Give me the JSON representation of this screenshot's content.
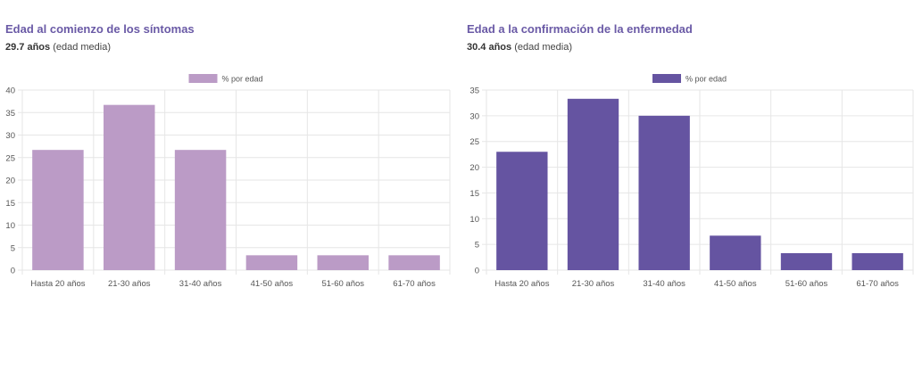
{
  "panels": [
    {
      "title": "Edad al comienzo de los síntomas",
      "stat_value": "29.7 años",
      "stat_label": "(edad media)"
    },
    {
      "title": "Edad a la confirmación de la enfermedad",
      "stat_value": "30.4 años",
      "stat_label": "(edad media)"
    }
  ],
  "chart_data": [
    {
      "type": "bar",
      "categories": [
        "Hasta 20 años",
        "21-30 años",
        "31-40 años",
        "41-50 años",
        "51-60 años",
        "61-70 años"
      ],
      "series": [
        {
          "name": "% por edad",
          "values": [
            26.7,
            36.7,
            26.7,
            3.3,
            3.3,
            3.3
          ]
        }
      ],
      "ylim": [
        0,
        40
      ],
      "yticks": [
        0,
        5,
        10,
        15,
        20,
        25,
        30,
        35,
        40
      ],
      "color": "#bb9bc6",
      "legend": "top-center",
      "grid": true
    },
    {
      "type": "bar",
      "categories": [
        "Hasta 20 años",
        "21-30 años",
        "31-40 años",
        "41-50 años",
        "51-60 años",
        "61-70 años"
      ],
      "series": [
        {
          "name": "% por edad",
          "values": [
            23.0,
            33.3,
            30.0,
            6.7,
            3.3,
            3.3
          ]
        }
      ],
      "ylim": [
        0,
        35
      ],
      "yticks": [
        0,
        5,
        10,
        15,
        20,
        25,
        30,
        35
      ],
      "color": "#6554a1",
      "legend": "top-center",
      "grid": true
    }
  ]
}
